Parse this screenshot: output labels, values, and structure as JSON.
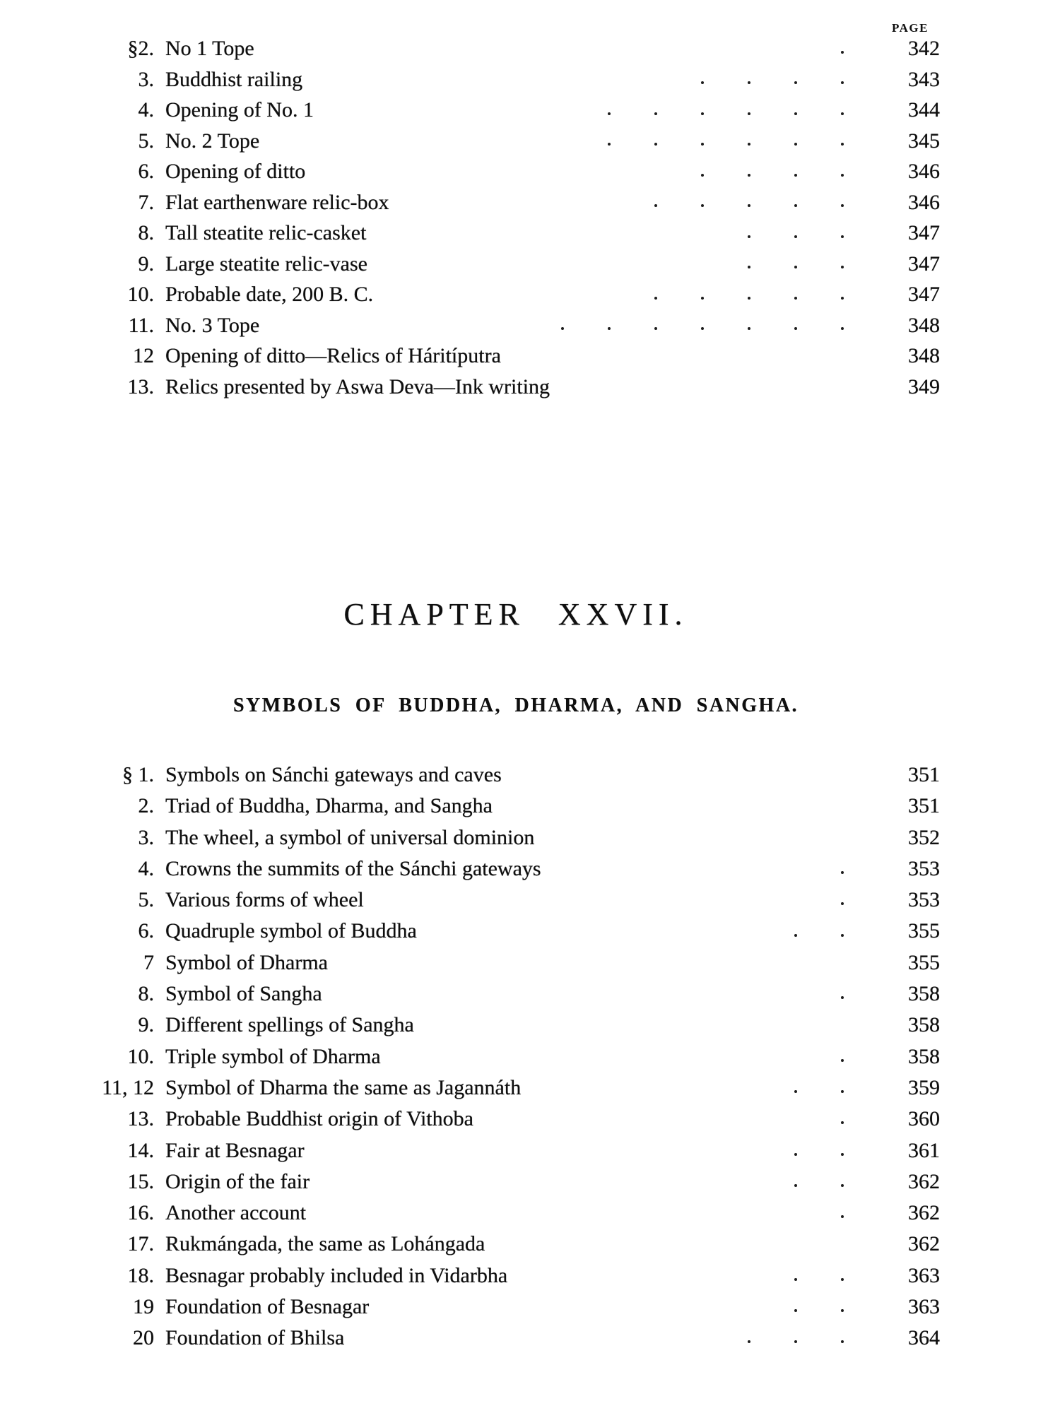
{
  "page": {
    "column_header": "PAGE"
  },
  "toc_top": {
    "items": [
      {
        "num": "§2.",
        "title": "No 1 Tope",
        "page": "342",
        "dots": 1
      },
      {
        "num": "3.",
        "title": "Buddhist railing",
        "page": "343",
        "dots": 4
      },
      {
        "num": "4.",
        "title": "Opening of No. 1",
        "page": "344",
        "dots": 6
      },
      {
        "num": "5.",
        "title": "No. 2 Tope",
        "page": "345",
        "dots": 6
      },
      {
        "num": "6.",
        "title": "Opening of ditto",
        "page": "346",
        "dots": 4
      },
      {
        "num": "7.",
        "title": "Flat earthenware relic-box",
        "page": "346",
        "dots": 5
      },
      {
        "num": "8.",
        "title": "Tall steatite relic-casket",
        "page": "347",
        "dots": 3
      },
      {
        "num": "9.",
        "title": "Large steatite relic-vase",
        "page": "347",
        "dots": 3
      },
      {
        "num": "10.",
        "title": "Probable date, 200 B. C.",
        "page": "347",
        "dots": 5
      },
      {
        "num": "11.",
        "title": "No. 3 Tope",
        "page": "348",
        "dots": 7
      },
      {
        "num": "12",
        "title": "Opening of ditto—Relics of Háritíputra",
        "page": "348",
        "dots": 0
      },
      {
        "num": "13.",
        "title": "Relics presented by Aswa Deva—Ink writing",
        "page": "349",
        "dots": 0
      }
    ]
  },
  "chapter": {
    "title": "CHAPTER XXVII.",
    "subtitle": "SYMBOLS OF BUDDHA, DHARMA, AND SANGHA."
  },
  "toc_chapter": {
    "items": [
      {
        "num": "§ 1.",
        "title": "Symbols on Sánchi gateways and caves",
        "page": "351",
        "dots": 0
      },
      {
        "num": "2.",
        "title": "Triad of Buddha, Dharma, and Sangha",
        "page": "351",
        "dots": 0
      },
      {
        "num": "3.",
        "title": "The wheel, a symbol of universal dominion",
        "page": "352",
        "dots": 0
      },
      {
        "num": "4.",
        "title": "Crowns the summits of the Sánchi gateways",
        "page": "353",
        "dots": 1
      },
      {
        "num": "5.",
        "title": "Various forms of wheel",
        "page": "353",
        "dots": 1
      },
      {
        "num": "6.",
        "title": "Quadruple symbol of Buddha",
        "page": "355",
        "dots": 2
      },
      {
        "num": "7",
        "title": "Symbol of Dharma",
        "page": "355",
        "dots": 0
      },
      {
        "num": "8.",
        "title": "Symbol of Sangha",
        "page": "358",
        "dots": 1
      },
      {
        "num": "9.",
        "title": "Different spellings of Sangha",
        "page": "358",
        "dots": 0
      },
      {
        "num": "10.",
        "title": "Triple symbol of Dharma",
        "page": "358",
        "dots": 1
      },
      {
        "num": "11, 12",
        "title": "Symbol of Dharma the same as Jagannáth",
        "page": "359",
        "dots": 2
      },
      {
        "num": "13.",
        "title": "Probable Buddhist origin of Vithoba",
        "page": "360",
        "dots": 1
      },
      {
        "num": "14.",
        "title": "Fair at Besnagar",
        "page": "361",
        "dots": 2
      },
      {
        "num": "15.",
        "title": "Origin of the fair",
        "page": "362",
        "dots": 2
      },
      {
        "num": "16.",
        "title": "Another account",
        "page": "362",
        "dots": 1
      },
      {
        "num": "17.",
        "title": "Rukmángada, the same as Lohángada",
        "page": "362",
        "dots": 0
      },
      {
        "num": "18.",
        "title": "Besnagar probably included in Vidarbha",
        "page": "363",
        "dots": 2
      },
      {
        "num": "19",
        "title": "Foundation of Besnagar",
        "page": "363",
        "dots": 2
      },
      {
        "num": "20",
        "title": "Foundation of Bhilsa",
        "page": "364",
        "dots": 3
      }
    ]
  }
}
